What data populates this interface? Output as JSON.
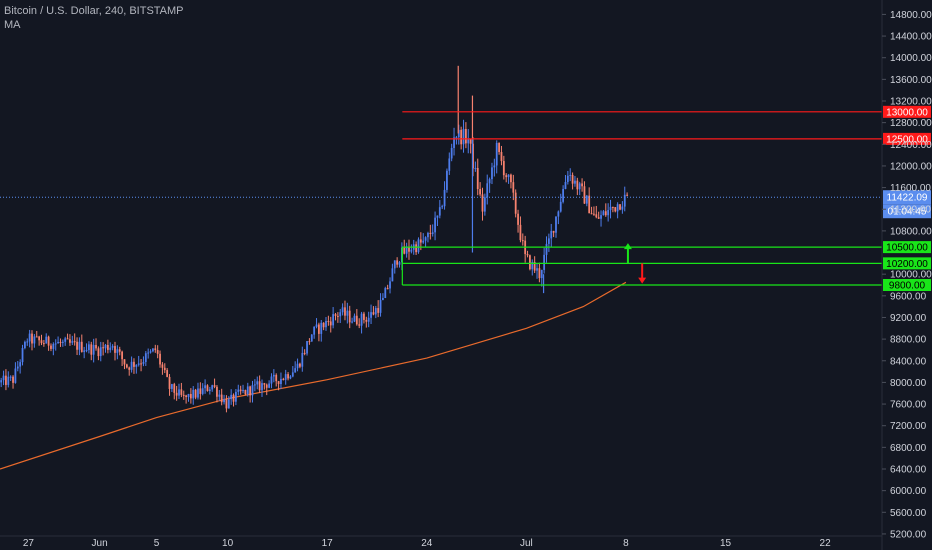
{
  "header": {
    "symbol": "Bitcoin / U.S. Dollar, 240, BITSTAMP",
    "indicator": "MA"
  },
  "colors": {
    "background": "#131722",
    "grid": "#1c2030",
    "axis_text": "#d1d4dc",
    "up_candle": "#4e7ded",
    "down_candle": "#f7826f",
    "ma_line": "#e86a2c",
    "resistance": "#ff1a1a",
    "support": "#19e619",
    "last_price_line": "#5b8dee",
    "up_arrow": "#19e619",
    "down_arrow": "#ff1a1a"
  },
  "chart_data": {
    "type": "candlestick",
    "title": "Bitcoin / U.S. Dollar, 240, BITSTAMP",
    "indicators": [
      "MA"
    ],
    "ylim": [
      5000,
      15000
    ],
    "grid": false,
    "y_axis": {
      "position": "right",
      "ticks": [
        5200,
        5600,
        6000,
        6400,
        6800,
        7200,
        7600,
        8000,
        8400,
        8800,
        9200,
        9600,
        10000,
        10800,
        11200,
        11600,
        12000,
        12400,
        12800,
        13200,
        13600,
        14000,
        14400,
        14800
      ],
      "tick_labels": [
        "5200.00",
        "5600.00",
        "6000.00",
        "6400.00",
        "6800.00",
        "7200.00",
        "7600.00",
        "8000.00",
        "8400.00",
        "8800.00",
        "9200.00",
        "9600.00",
        "10000.00",
        "10800.00",
        "11200.00",
        "11600.00",
        "12000.00",
        "12400.00",
        "12800.00",
        "13200.00",
        "13600.00",
        "14000.00",
        "14400.00",
        "14800.00"
      ]
    },
    "x_axis": {
      "labels": [
        {
          "text": "27",
          "date": "2019-05-27"
        },
        {
          "text": "Jun",
          "date": "2019-06-01"
        },
        {
          "text": "5",
          "date": "2019-06-05"
        },
        {
          "text": "10",
          "date": "2019-06-10"
        },
        {
          "text": "17",
          "date": "2019-06-17"
        },
        {
          "text": "24",
          "date": "2019-06-24"
        },
        {
          "text": "Jul",
          "date": "2019-07-01"
        },
        {
          "text": "8",
          "date": "2019-07-08"
        },
        {
          "text": "15",
          "date": "2019-07-15"
        },
        {
          "text": "22",
          "date": "2019-07-22"
        }
      ]
    },
    "path_points": [
      [
        "2019-05-25",
        8000
      ],
      [
        "2019-05-26",
        8050
      ],
      [
        "2019-05-27",
        8800
      ],
      [
        "2019-05-28",
        8750
      ],
      [
        "2019-05-30",
        8700
      ],
      [
        "2019-06-01",
        8600
      ],
      [
        "2019-06-02",
        8700
      ],
      [
        "2019-06-03",
        8300
      ],
      [
        "2019-06-04",
        8400
      ],
      [
        "2019-06-05",
        8600
      ],
      [
        "2019-06-06",
        7900
      ],
      [
        "2019-06-07",
        7700
      ],
      [
        "2019-06-08",
        7800
      ],
      [
        "2019-06-09",
        7950
      ],
      [
        "2019-06-10",
        7600
      ],
      [
        "2019-06-11",
        7800
      ],
      [
        "2019-06-12",
        7900
      ],
      [
        "2019-06-13",
        8000
      ],
      [
        "2019-06-14",
        8100
      ],
      [
        "2019-06-15",
        8300
      ],
      [
        "2019-06-16",
        8900
      ],
      [
        "2019-06-17",
        9100
      ],
      [
        "2019-06-18",
        9300
      ],
      [
        "2019-06-19",
        9150
      ],
      [
        "2019-06-20",
        9200
      ],
      [
        "2019-06-21",
        9500
      ],
      [
        "2019-06-22",
        10300
      ],
      [
        "2019-06-23",
        10500
      ],
      [
        "2019-06-24",
        10600
      ],
      [
        "2019-06-25",
        11100
      ],
      [
        "2019-06-26",
        12600
      ],
      [
        "2019-06-27",
        12500
      ],
      [
        "2019-06-28",
        11200
      ],
      [
        "2019-06-29",
        12300
      ],
      [
        "2019-06-30",
        11600
      ],
      [
        "2019-07-01",
        10300
      ],
      [
        "2019-07-02",
        10000
      ],
      [
        "2019-07-03",
        10900
      ],
      [
        "2019-07-04",
        11900
      ],
      [
        "2019-07-05",
        11500
      ],
      [
        "2019-07-06",
        11000
      ],
      [
        "2019-07-07",
        11200
      ],
      [
        "2019-07-08",
        11400
      ]
    ],
    "spikes": [
      {
        "date": "2019-06-26",
        "high": 13850
      },
      {
        "date": "2019-06-27",
        "high": 13300
      },
      {
        "date": "2019-07-02",
        "low": 9650
      },
      {
        "date": "2019-06-27",
        "low": 10400
      }
    ],
    "moving_average": [
      [
        "2019-05-25",
        6400
      ],
      [
        "2019-06-01",
        7000
      ],
      [
        "2019-06-05",
        7350
      ],
      [
        "2019-06-10",
        7700
      ],
      [
        "2019-06-17",
        8050
      ],
      [
        "2019-06-24",
        8450
      ],
      [
        "2019-07-01",
        9000
      ],
      [
        "2019-07-05",
        9400
      ],
      [
        "2019-07-08",
        9850
      ]
    ],
    "horizontal_levels": [
      {
        "value": 13000,
        "label": "13000.00",
        "kind": "resistance",
        "from_date": "2019-06-22"
      },
      {
        "value": 12500,
        "label": "12500.00",
        "kind": "resistance",
        "from_date": "2019-06-22"
      },
      {
        "value": 10500,
        "label": "10500.00",
        "kind": "support",
        "from_date": "2019-06-22"
      },
      {
        "value": 10200,
        "label": "10200.00",
        "kind": "support",
        "from_date": "2019-06-22"
      },
      {
        "value": 9800,
        "label": "9800.00",
        "kind": "support",
        "from_date": "2019-06-22"
      }
    ],
    "last_price": {
      "value": 11422.09,
      "label": "11422.09"
    },
    "countdown": {
      "label": "01:04:45"
    },
    "arrows": [
      {
        "direction": "up",
        "date": "2019-07-08",
        "from": 10200,
        "to": 10500
      },
      {
        "direction": "down",
        "date": "2019-07-09",
        "from": 10200,
        "to": 9900
      }
    ]
  }
}
